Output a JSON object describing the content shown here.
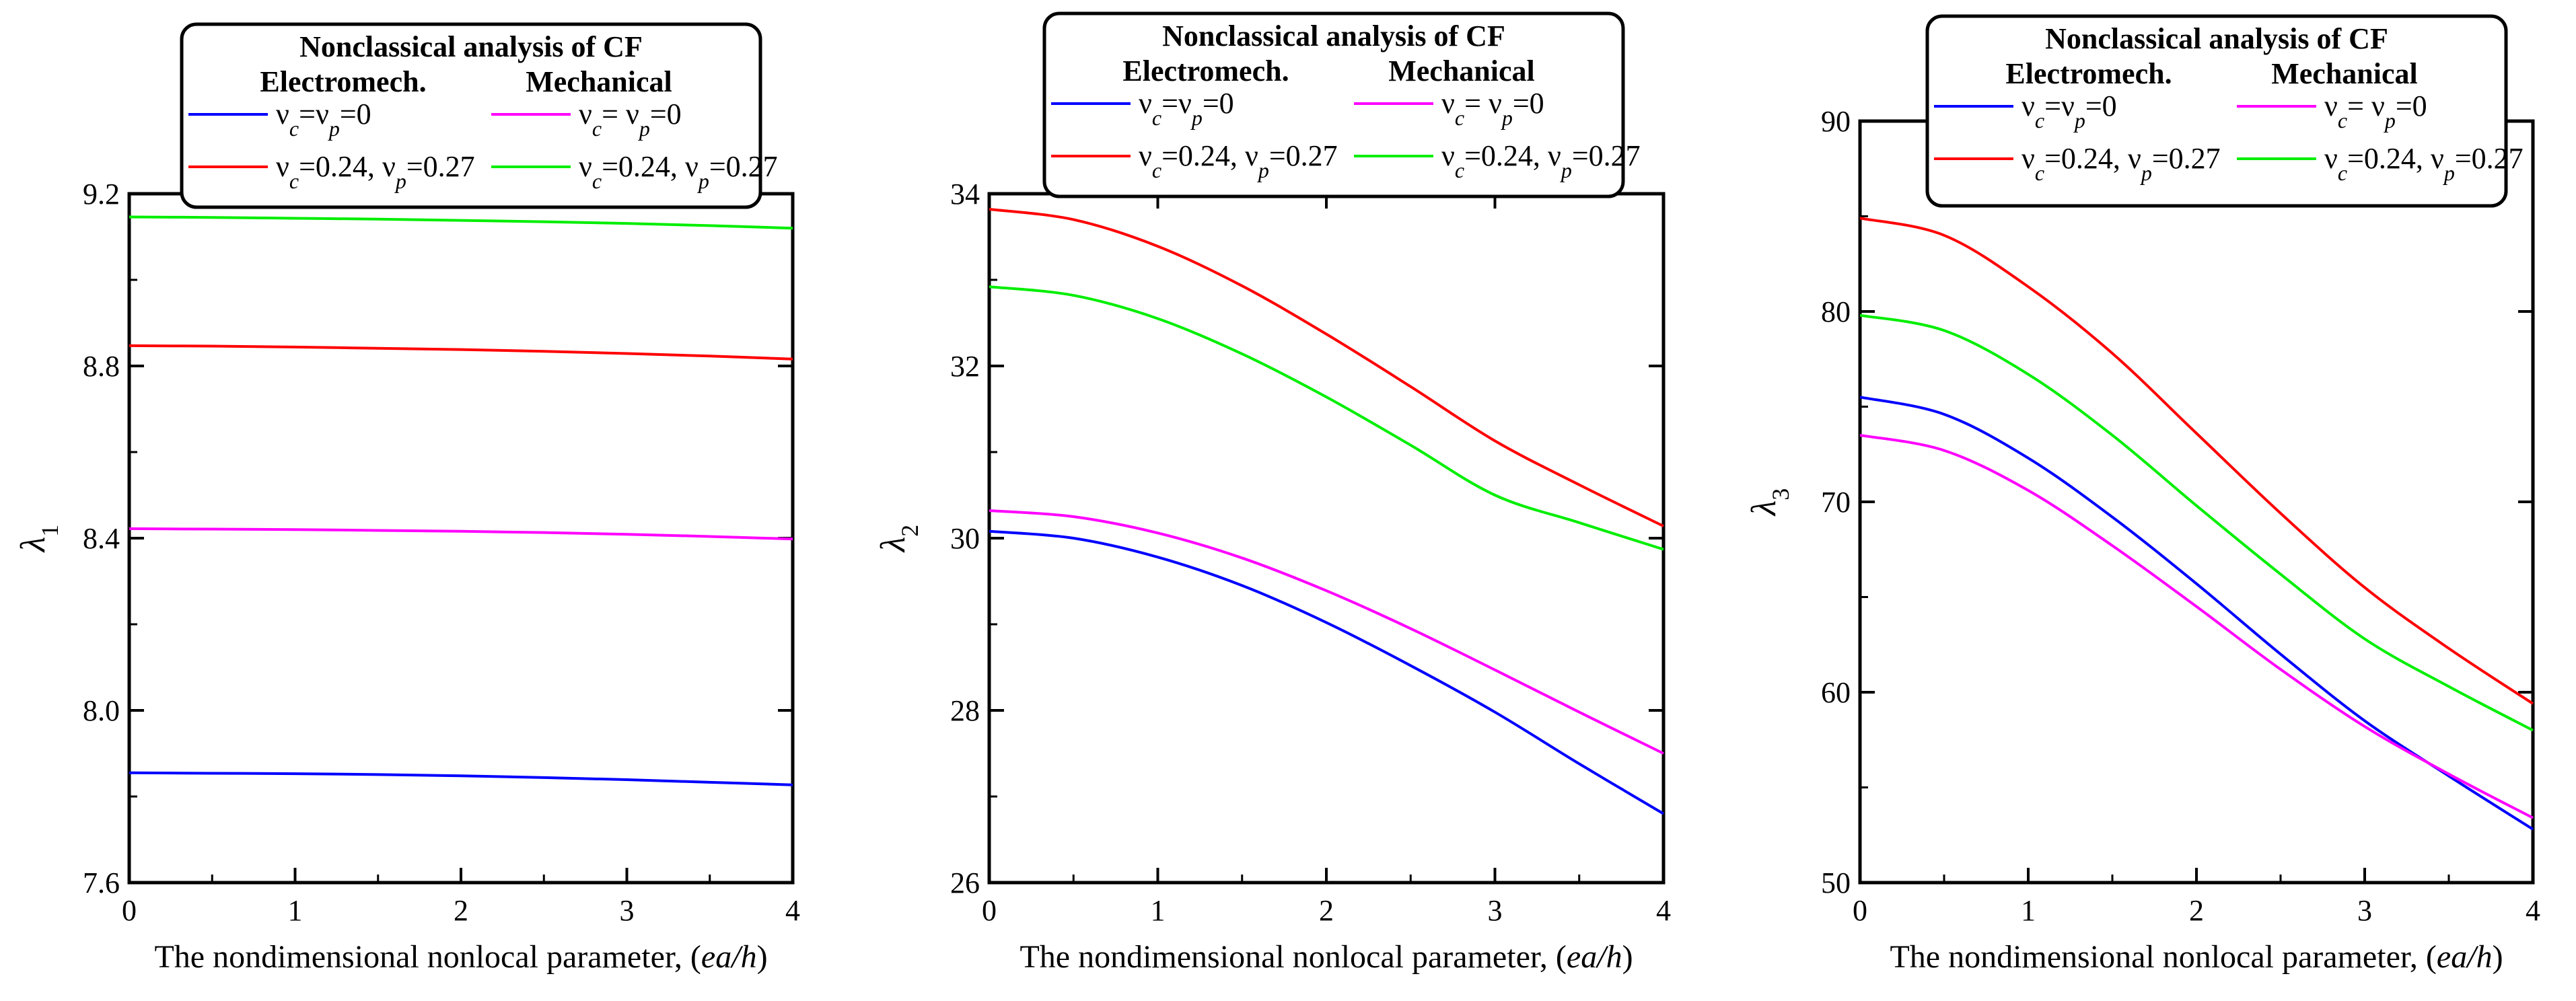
{
  "chart_data": [
    {
      "type": "line",
      "title": "Nonclassical analysis of CF",
      "legend_groups": [
        "Electromech.",
        "Mechanical"
      ],
      "xlabel": "The nondimensional nonlocal parameter, (ea/h)",
      "ylabel": "λ1",
      "xlim": [
        0,
        4
      ],
      "ylim": [
        7.6,
        9.2
      ],
      "xticks": [
        "0",
        "1",
        "2",
        "3",
        "4"
      ],
      "yticks": [
        "7.6",
        "8.0",
        "8.4",
        "8.8",
        "9.2"
      ],
      "x": [
        0,
        0.5,
        1,
        1.5,
        2,
        2.5,
        3,
        3.5,
        4
      ],
      "series": [
        {
          "name": "νc=νp=0",
          "group": "Electromech.",
          "color": "#0000ff",
          "values": [
            7.855,
            7.854,
            7.853,
            7.851,
            7.848,
            7.844,
            7.839,
            7.833,
            7.827
          ]
        },
        {
          "name": "νc= νp=0",
          "group": "Mechanical",
          "color": "#ff00ff",
          "values": [
            8.422,
            8.421,
            8.42,
            8.418,
            8.416,
            8.413,
            8.409,
            8.404,
            8.398
          ]
        },
        {
          "name": "νc=0.24, νp=0.27",
          "group": "Electromech.",
          "color": "#ff0000",
          "values": [
            8.847,
            8.846,
            8.844,
            8.841,
            8.838,
            8.834,
            8.829,
            8.823,
            8.816
          ]
        },
        {
          "name": "νc=0.24, νp=0.27",
          "group": "Mechanical",
          "color": "#00ee00",
          "values": [
            9.146,
            9.145,
            9.143,
            9.141,
            9.138,
            9.135,
            9.131,
            9.126,
            9.12
          ]
        }
      ]
    },
    {
      "type": "line",
      "title": "Nonclassical analysis of CF",
      "legend_groups": [
        "Electromech.",
        "Mechanical"
      ],
      "xlabel": "The nondimensional nonlocal parameter, (ea/h)",
      "ylabel": "λ2",
      "xlim": [
        0,
        4
      ],
      "ylim": [
        26,
        34
      ],
      "xticks": [
        "0",
        "1",
        "2",
        "3",
        "4"
      ],
      "yticks": [
        "26",
        "28",
        "30",
        "32",
        "34"
      ],
      "x": [
        0,
        0.5,
        1,
        1.5,
        2,
        2.5,
        3,
        3.5,
        4
      ],
      "series": [
        {
          "name": "νc=νp=0",
          "group": "Electromech.",
          "color": "#0000ff",
          "values": [
            30.08,
            30.0,
            29.78,
            29.45,
            29.02,
            28.52,
            27.98,
            27.38,
            26.8
          ]
        },
        {
          "name": "νc= νp=0",
          "group": "Mechanical",
          "color": "#ff00ff",
          "values": [
            30.32,
            30.25,
            30.06,
            29.77,
            29.39,
            28.95,
            28.47,
            27.98,
            27.5
          ]
        },
        {
          "name": "νc=0.24, νp=0.27",
          "group": "Electromech.",
          "color": "#ff0000",
          "values": [
            33.82,
            33.7,
            33.39,
            32.93,
            32.37,
            31.76,
            31.13,
            30.62,
            30.14
          ]
        },
        {
          "name": "νc=0.24, νp=0.27",
          "group": "Mechanical",
          "color": "#00ee00",
          "values": [
            32.92,
            32.82,
            32.55,
            32.14,
            31.64,
            31.08,
            30.5,
            30.18,
            29.87
          ]
        }
      ]
    },
    {
      "type": "line",
      "title": "Nonclassical analysis of CF",
      "legend_groups": [
        "Electromech.",
        "Mechanical"
      ],
      "xlabel": "The nondimensional nonlocal parameter, (ea/h)",
      "ylabel": "λ3",
      "xlim": [
        0,
        4
      ],
      "ylim": [
        50,
        90
      ],
      "xticks": [
        "0",
        "1",
        "2",
        "3",
        "4"
      ],
      "yticks": [
        "50",
        "60",
        "70",
        "80",
        "90"
      ],
      "x": [
        0,
        0.5,
        1,
        1.5,
        2,
        2.5,
        3,
        3.5,
        4
      ],
      "series": [
        {
          "name": "νc=νp=0",
          "group": "Electromech.",
          "color": "#0000ff",
          "values": [
            75.5,
            74.6,
            72.3,
            69.2,
            65.7,
            62.0,
            58.5,
            55.6,
            52.8
          ]
        },
        {
          "name": "νc= νp=0",
          "group": "Mechanical",
          "color": "#ff00ff",
          "values": [
            73.5,
            72.7,
            70.6,
            67.7,
            64.5,
            61.2,
            58.2,
            55.7,
            53.4
          ]
        },
        {
          "name": "νc=0.24, νp=0.27",
          "group": "Electromech.",
          "color": "#ff0000",
          "values": [
            84.9,
            84.0,
            81.3,
            77.8,
            73.6,
            69.4,
            65.5,
            62.3,
            59.4
          ]
        },
        {
          "name": "νc=0.24, νp=0.27",
          "group": "Mechanical",
          "color": "#00ee00",
          "values": [
            79.8,
            79.0,
            76.7,
            73.5,
            69.8,
            66.2,
            62.8,
            60.3,
            58.0
          ]
        }
      ]
    }
  ]
}
